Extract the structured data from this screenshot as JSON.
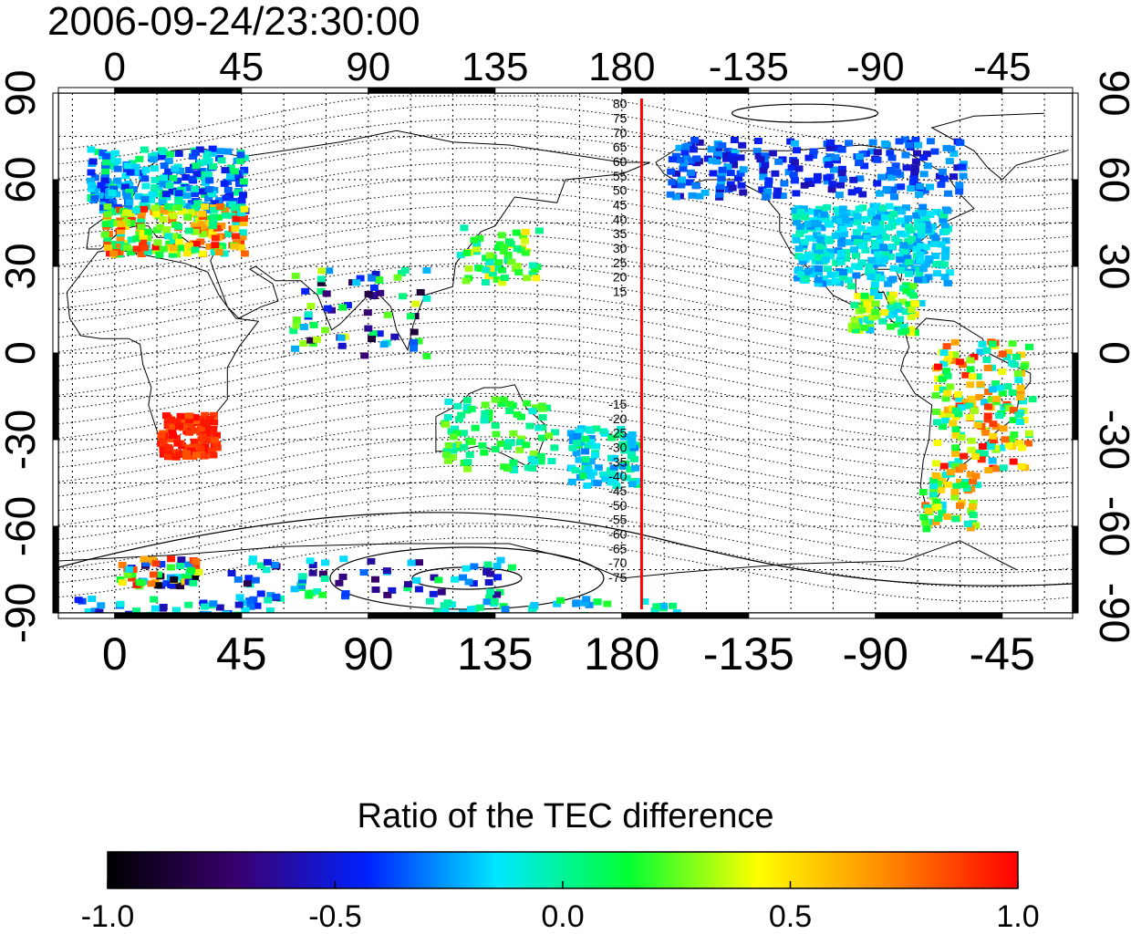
{
  "title": "2006-09-24/23:30:00",
  "map": {
    "projection": "cylindrical",
    "lon_start": -20,
    "lon_span": 360,
    "lat_range": [
      -90,
      90
    ],
    "bottom_lon_labels": [
      "0",
      "45",
      "90",
      "135",
      "180",
      "-135",
      "-90",
      "-45"
    ],
    "top_lon_labels": [
      "0",
      "45",
      "90",
      "135",
      "180",
      "-135",
      "-90",
      "-45"
    ],
    "left_lat_labels": [
      "90",
      "60",
      "30",
      "0",
      "-30",
      "-60",
      "-90"
    ],
    "right_lat_labels": [
      "90",
      "60",
      "30",
      "0",
      "-30",
      "-60",
      "-90"
    ],
    "meridian_marker": {
      "lon": 187,
      "color": "#ff0000"
    },
    "dip_latitude_labels_north": [
      "80",
      "75",
      "70",
      "65",
      "60",
      "55",
      "50",
      "45",
      "40",
      "35",
      "30",
      "25",
      "20",
      "15"
    ],
    "dip_latitude_labels_south": [
      "-15",
      "-20",
      "-25",
      "-30",
      "-35",
      "-40",
      "-45",
      "-50",
      "-55",
      "-60",
      "-65",
      "-70",
      "-75"
    ]
  },
  "colorbar": {
    "title": "Ratio of the TEC difference",
    "min": -1.0,
    "max": 1.0,
    "tick_labels": [
      "-1.0",
      "-0.5",
      "0.0",
      "0.5",
      "1.0"
    ],
    "colors": [
      "#000000",
      "#3a0070",
      "#0022ff",
      "#00e8ff",
      "#00ff33",
      "#ffff00",
      "#ff8800",
      "#ff0000"
    ]
  }
}
